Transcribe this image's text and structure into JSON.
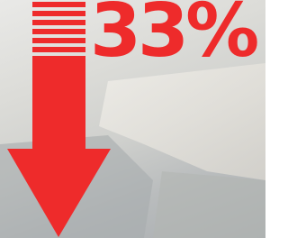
{
  "text": "33%"
}
